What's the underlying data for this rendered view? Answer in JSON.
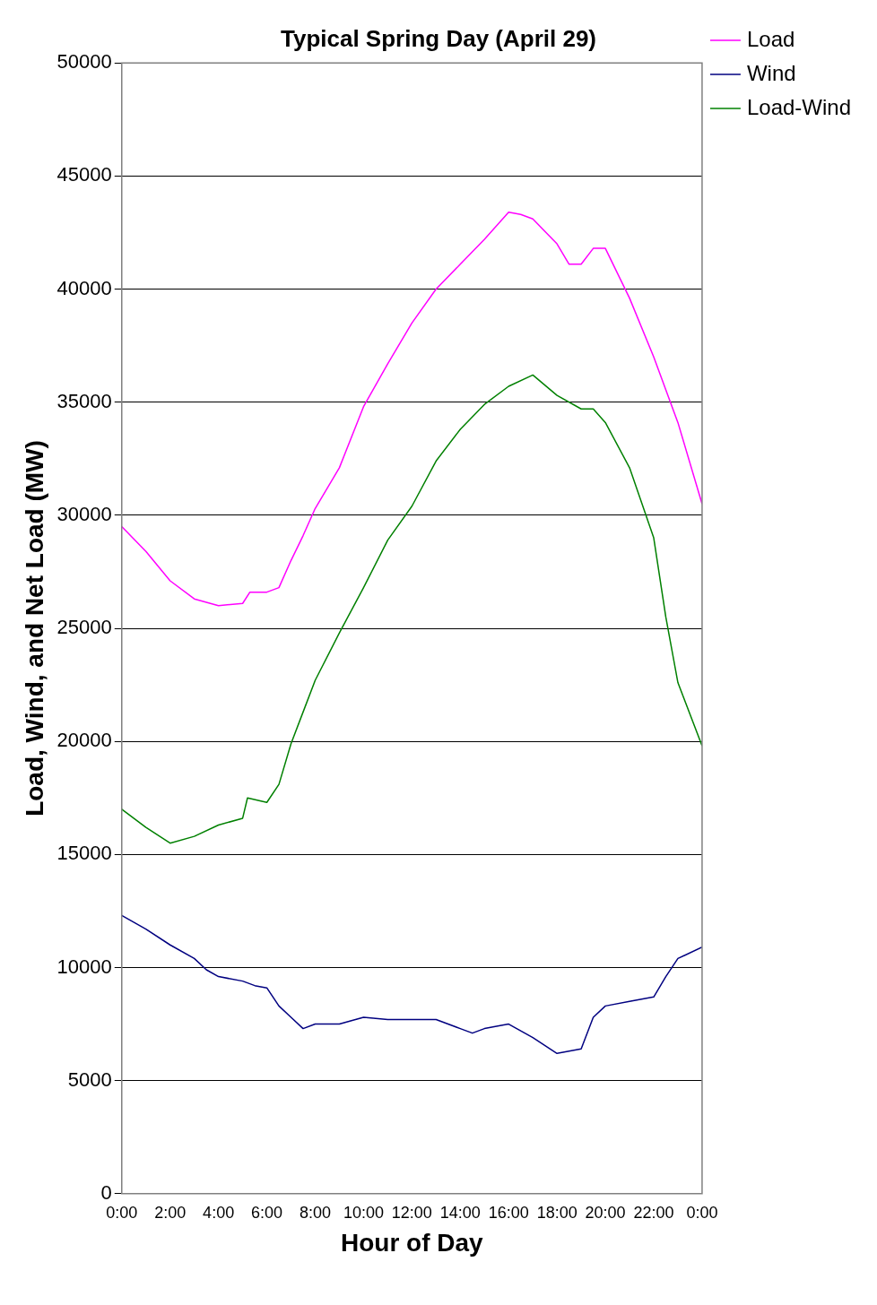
{
  "chart_data": {
    "type": "line",
    "title": "Typical Spring Day (April 29)",
    "xlabel": "Hour of Day",
    "ylabel": "Load, Wind, and Net Load (MW)",
    "x": [
      0,
      1,
      2,
      3,
      4,
      5,
      5.3,
      6,
      6.5,
      7,
      7.5,
      8,
      9,
      10,
      11,
      12,
      13,
      14,
      15,
      16,
      16.5,
      17,
      18,
      18.5,
      19,
      19.5,
      20,
      20.5,
      21,
      22,
      23,
      24
    ],
    "xlim": [
      0,
      24
    ],
    "xticks": [
      {
        "value": 0,
        "label": "0:00"
      },
      {
        "value": 2,
        "label": "2:00"
      },
      {
        "value": 4,
        "label": "4:00"
      },
      {
        "value": 6,
        "label": "6:00"
      },
      {
        "value": 8,
        "label": "8:00"
      },
      {
        "value": 10,
        "label": "10:00"
      },
      {
        "value": 12,
        "label": "12:00"
      },
      {
        "value": 14,
        "label": "14:00"
      },
      {
        "value": 16,
        "label": "16:00"
      },
      {
        "value": 18,
        "label": "18:00"
      },
      {
        "value": 20,
        "label": "20:00"
      },
      {
        "value": 22,
        "label": "22:00"
      },
      {
        "value": 24,
        "label": "0:00"
      }
    ],
    "ylim": [
      0,
      50000
    ],
    "yticks": [
      0,
      5000,
      10000,
      15000,
      20000,
      25000,
      30000,
      35000,
      40000,
      45000,
      50000
    ],
    "grid": "y",
    "legend": "top right",
    "marker": "none",
    "line_style": "solid",
    "series": [
      {
        "name": "Load",
        "color": "#ff00ff",
        "values": [
          29500,
          28400,
          27100,
          26300,
          26000,
          26100,
          26600,
          26600,
          26800,
          28000,
          29100,
          30300,
          32100,
          34800,
          36700,
          38500,
          40000,
          41100,
          42200,
          43400,
          43300,
          43100,
          42000,
          41100,
          41100,
          41800,
          41800,
          40700,
          39600,
          37000,
          34100,
          30500
        ]
      },
      {
        "name": "Wind",
        "color": "#000080",
        "x": [
          0,
          1,
          2,
          3,
          3.5,
          4,
          5,
          5.5,
          6,
          6.5,
          7,
          7.5,
          8,
          9,
          10,
          11,
          12,
          13,
          14,
          14.5,
          15,
          16,
          17,
          18,
          19,
          19.5,
          20,
          21,
          22,
          22.5,
          23,
          24
        ],
        "values": [
          12300,
          11700,
          11000,
          10400,
          9900,
          9600,
          9400,
          9200,
          9100,
          8300,
          7800,
          7300,
          7500,
          7500,
          7800,
          7700,
          7700,
          7700,
          7300,
          7100,
          7300,
          7500,
          6900,
          6200,
          6400,
          7800,
          8300,
          8500,
          8700,
          9600,
          10400,
          10900
        ]
      },
      {
        "name": "Load-Wind",
        "color": "#008000",
        "x": [
          0,
          1,
          2,
          3,
          4,
          5,
          5.2,
          6,
          6.5,
          7,
          7.5,
          8,
          9,
          10,
          11,
          12,
          13,
          14,
          15,
          16,
          17,
          18,
          19,
          19.5,
          20,
          21,
          22,
          22.5,
          23,
          24
        ],
        "values": [
          17000,
          16200,
          15500,
          15800,
          16300,
          16600,
          17500,
          17300,
          18100,
          19900,
          21300,
          22700,
          24800,
          26800,
          28900,
          30400,
          32400,
          33800,
          34900,
          35700,
          36200,
          35300,
          34700,
          34700,
          34100,
          32100,
          29000,
          25500,
          22600,
          19800
        ]
      }
    ]
  }
}
